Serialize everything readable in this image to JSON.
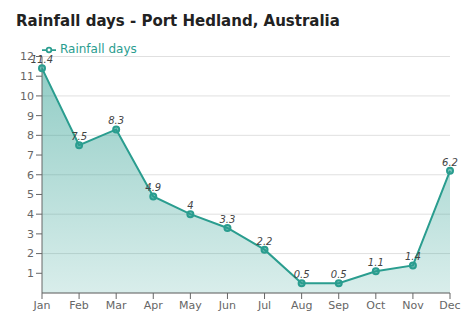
{
  "chart_data": {
    "type": "area",
    "title": "Rainfall days - Port Hedland, Australia",
    "categories": [
      "Jan",
      "Feb",
      "Mar",
      "Apr",
      "May",
      "Jun",
      "Jul",
      "Aug",
      "Sep",
      "Oct",
      "Nov",
      "Dec"
    ],
    "series": [
      {
        "name": "Rainfall days",
        "color": "#2a9d8f",
        "values": [
          11.4,
          7.5,
          8.3,
          4.9,
          4.0,
          3.3,
          2.2,
          0.5,
          0.5,
          1.1,
          1.4,
          6.2
        ]
      }
    ],
    "ylim": [
      0,
      12
    ],
    "yticks": [
      1,
      2,
      3,
      4,
      5,
      6,
      7,
      8,
      9,
      10,
      11,
      12
    ],
    "grid": true,
    "legend": "upper left",
    "data_labels": true,
    "marker": "circle"
  }
}
